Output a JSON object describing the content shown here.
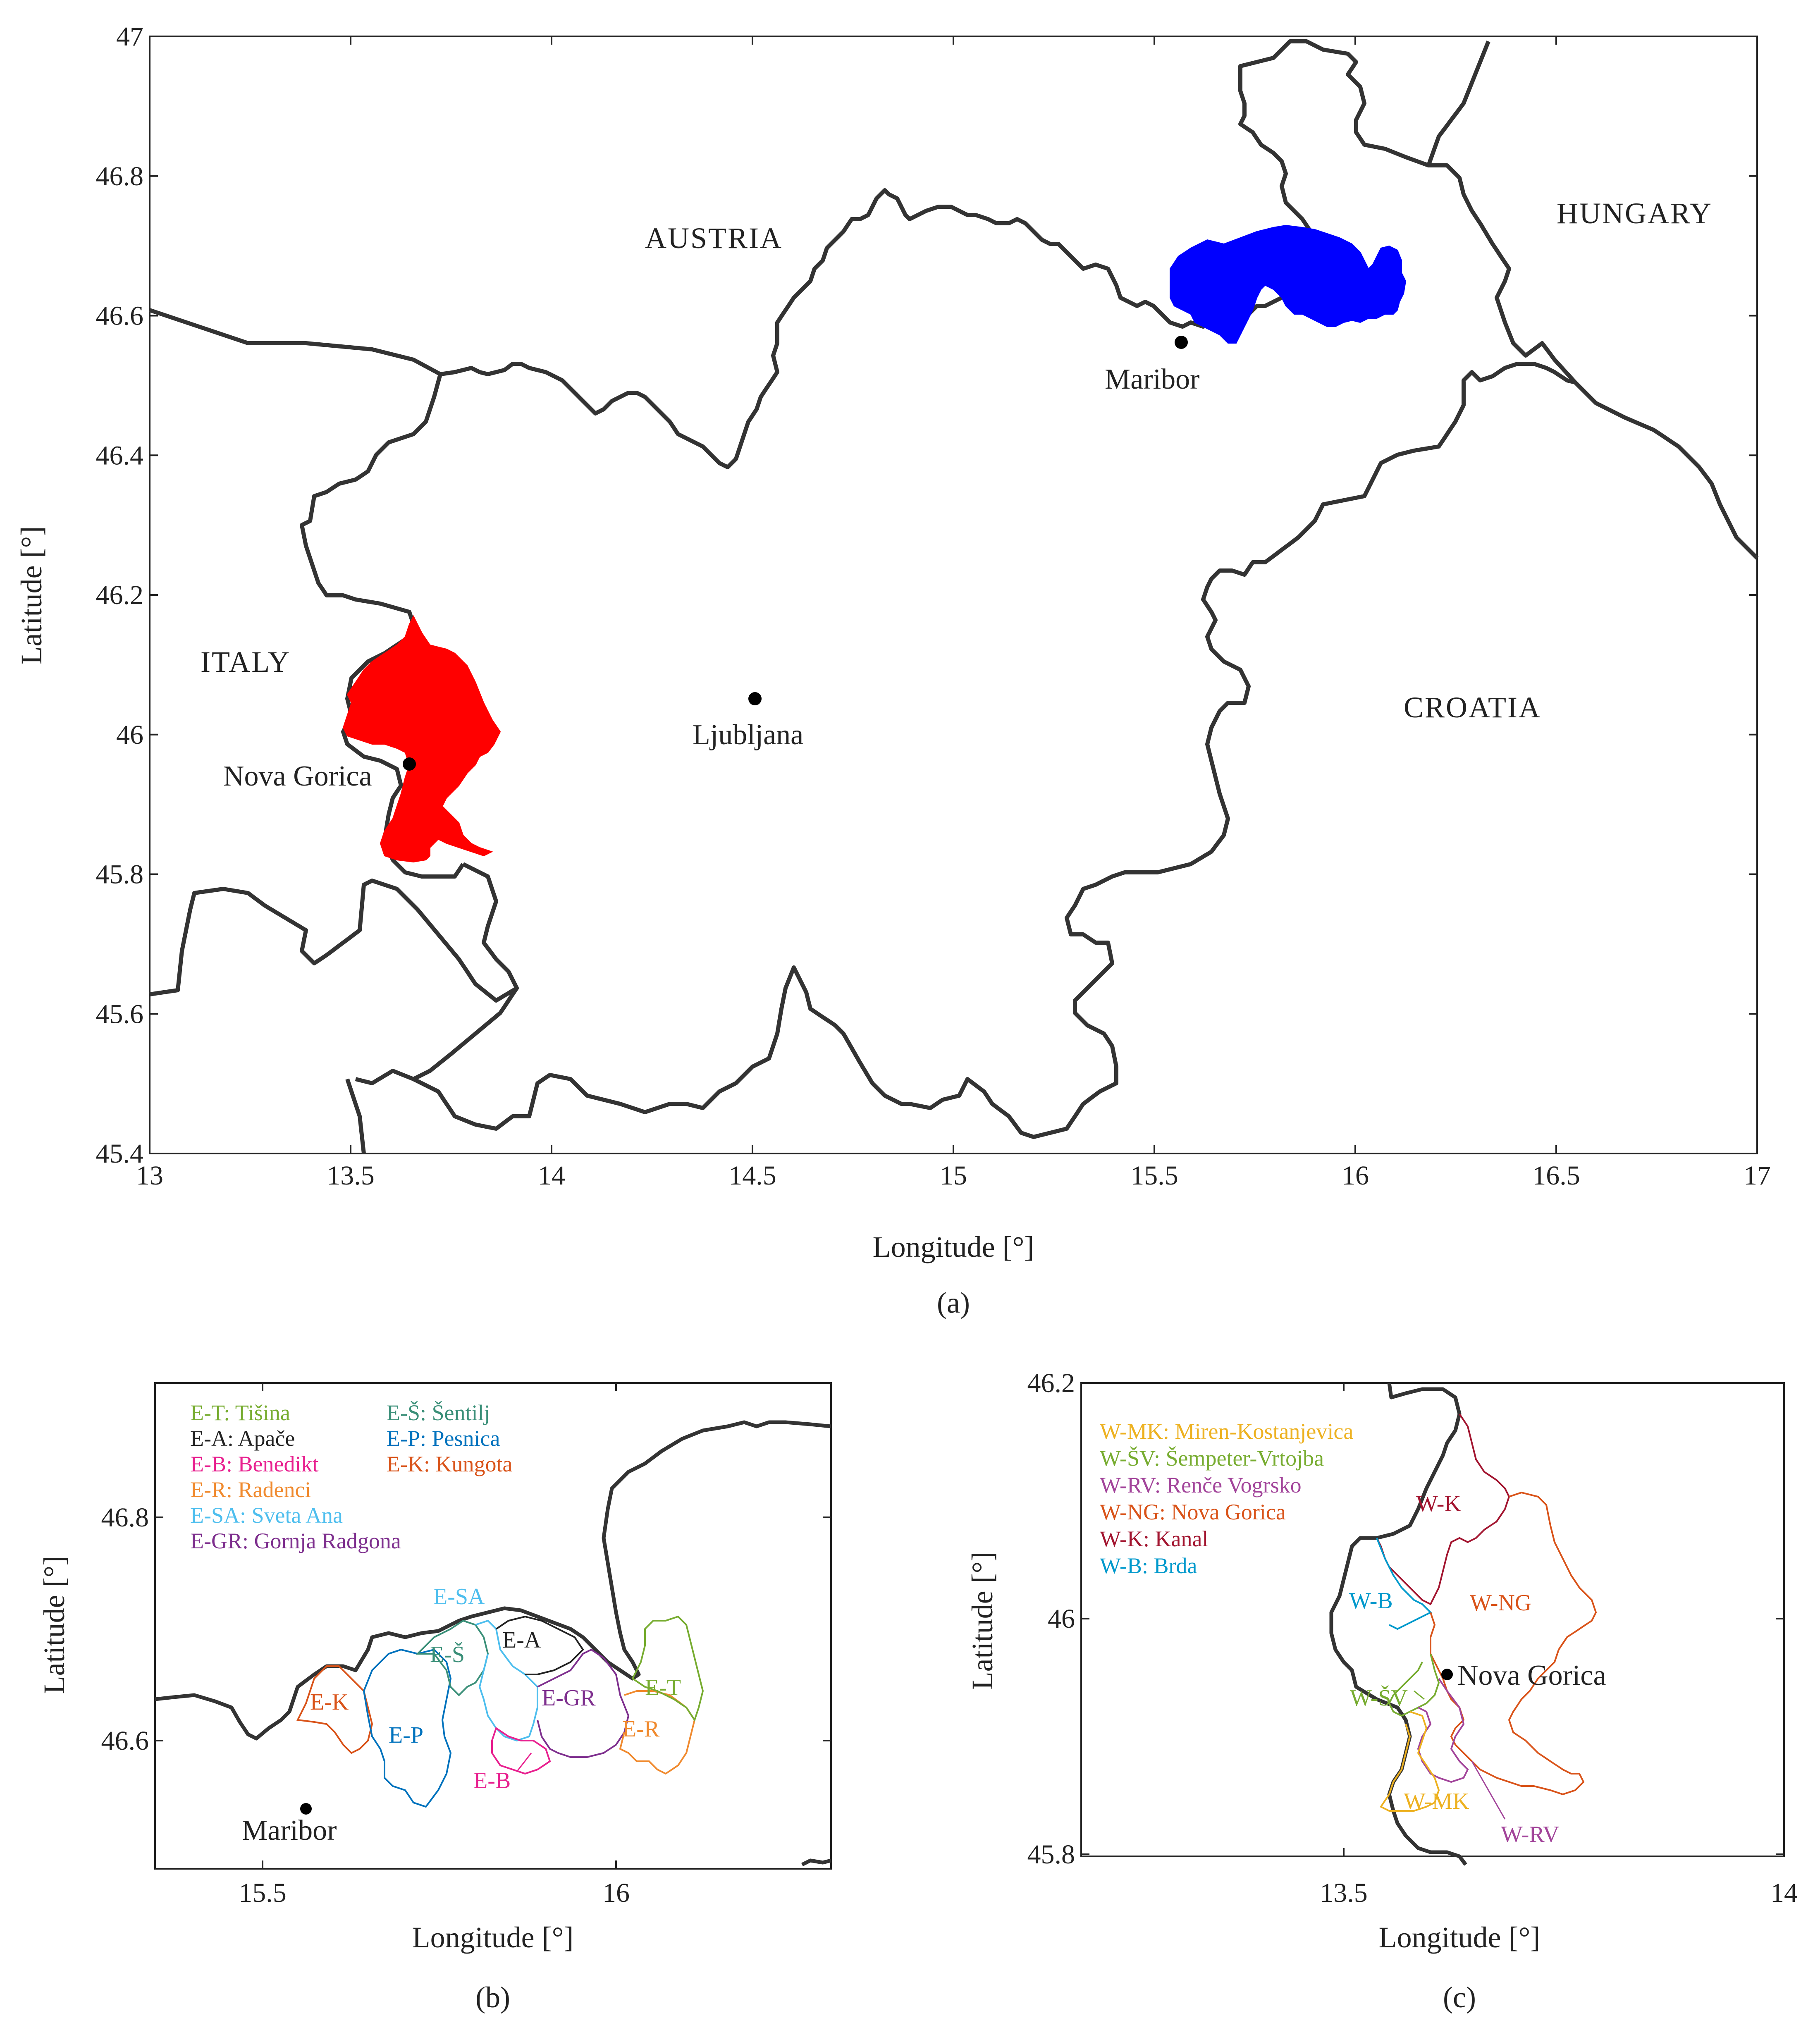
{
  "panel_a": {
    "caption": "(a)",
    "xlabel": "Longitude [°]",
    "ylabel": "Latitude [°]",
    "xticks": [
      "13",
      "13.5",
      "14",
      "14.5",
      "15",
      "15.5",
      "16",
      "16.5",
      "17"
    ],
    "yticks": [
      "47",
      "46.8",
      "46.6",
      "46.4",
      "46.2",
      "46",
      "45.8",
      "45.6",
      "45.4"
    ],
    "countries": {
      "austria": "AUSTRIA",
      "hungary": "HUNGARY",
      "italy": "ITALY",
      "croatia": "CROATIA"
    },
    "cities": {
      "maribor": "Maribor",
      "ljubljana": "Ljubljana",
      "nova_gorica": "Nova Gorica"
    },
    "colors": {
      "west_region": "#ff0000",
      "east_region": "#0000ff",
      "border": "#333333"
    }
  },
  "panel_b": {
    "caption": "(b)",
    "xlabel": "Longitude [°]",
    "ylabel": "Latitude [°]",
    "xticks": [
      "15.5",
      "16"
    ],
    "yticks": [
      "46.8",
      "46.6"
    ],
    "city": "Maribor",
    "legend": [
      {
        "code": "E-T:",
        "name": "Tišina",
        "color": "#77ac30"
      },
      {
        "code": "E-A:",
        "name": "Apače",
        "color": "#222222"
      },
      {
        "code": "E-B:",
        "name": "Benedikt",
        "color": "#e8208f"
      },
      {
        "code": "E-R:",
        "name": "Radenci",
        "color": "#f08a2e"
      },
      {
        "code": "E-SA:",
        "name": "Sveta Ana",
        "color": "#4dbeee"
      },
      {
        "code": "E-GR:",
        "name": "Gornja Radgona",
        "color": "#7e2f8e"
      },
      {
        "code": "E-Š:",
        "name": "Šentilj",
        "color": "#3a8f78"
      },
      {
        "code": "E-P:",
        "name": "Pesnica",
        "color": "#0072bd"
      },
      {
        "code": "E-K:",
        "name": "Kungota",
        "color": "#d95319"
      }
    ],
    "region_labels": {
      "sa": "E-SA",
      "s": "E-Š",
      "a": "E-A",
      "gr": "E-GR",
      "t": "E-T",
      "k": "E-K",
      "p": "E-P",
      "r": "E-R",
      "b": "E-B"
    }
  },
  "panel_c": {
    "caption": "(c)",
    "xlabel": "Longitude [°]",
    "ylabel": "Latitude [°]",
    "xticks": [
      "13.5",
      "14"
    ],
    "yticks": [
      "46.2",
      "46",
      "45.8"
    ],
    "city": "Nova Gorica",
    "legend": [
      {
        "code": "W-MK:",
        "name": "Miren-Kostanjevica",
        "color": "#edb120"
      },
      {
        "code": "W-ŠV:",
        "name": "Šempeter-Vrtojba",
        "color": "#77ac30"
      },
      {
        "code": "W-RV:",
        "name": "Renče Vogrsko",
        "color": "#a2449a"
      },
      {
        "code": "W-NG:",
        "name": "Nova Gorica",
        "color": "#d95319"
      },
      {
        "code": "W-K:",
        "name": "Kanal",
        "color": "#a2142f"
      },
      {
        "code": "W-B:",
        "name": "Brda",
        "color": "#0099cc"
      }
    ],
    "region_labels": {
      "k": "W-K",
      "b": "W-B",
      "ng": "W-NG",
      "sv": "W-ŠV",
      "mk": "W-MK",
      "rv": "W-RV"
    }
  }
}
